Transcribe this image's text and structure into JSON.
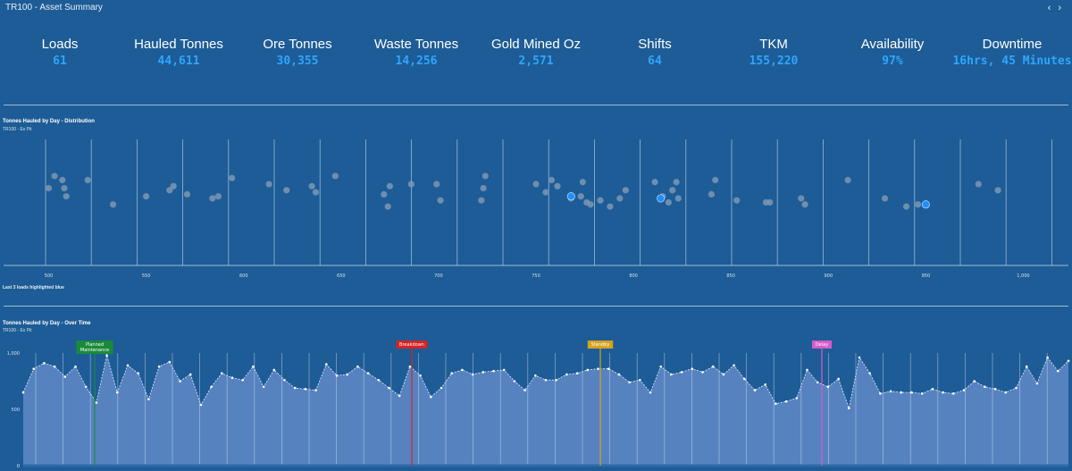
{
  "header": {
    "title": "TR100 - Asset Summary",
    "prev_icon": "‹",
    "next_icon": "›"
  },
  "kpis": [
    {
      "label": "Loads",
      "value": "61"
    },
    {
      "label": "Hauled Tonnes",
      "value": "44,611"
    },
    {
      "label": "Ore Tonnes",
      "value": "30,355"
    },
    {
      "label": "Waste Tonnes",
      "value": "14,256"
    },
    {
      "label": "Gold Mined Oz",
      "value": "2,571"
    },
    {
      "label": "Shifts",
      "value": "64"
    },
    {
      "label": "TKM",
      "value": "155,220"
    },
    {
      "label": "Availability",
      "value": "97%"
    },
    {
      "label": "Downtime",
      "value": "16hrs, 45 Minutes"
    }
  ],
  "distribution": {
    "title": "Tonnes Hauled by Day - Distribution",
    "subtitle": "TR100 - Ex Pit",
    "note": "Last 3 loads highlighted blue"
  },
  "overtime": {
    "title": "Tonnes Hauled by Day - Over Time",
    "subtitle": "TR100 - Ex Pit"
  },
  "colors": {
    "background": "#1d5c96",
    "kpi_value": "#2ea6ff",
    "point": "#7d97b5",
    "highlight": "#1e90ff",
    "area": "#5a84c2"
  },
  "chart_data": [
    {
      "type": "scatter",
      "title": "Tonnes Hauled by Day - Distribution",
      "subtitle": "TR100 - Ex Pit",
      "xlim": [
        475,
        1025
      ],
      "xticks": [
        500,
        550,
        600,
        650,
        700,
        750,
        800,
        850,
        900,
        950,
        1000
      ],
      "xtick_labels": [
        "500",
        "550",
        "600",
        "650",
        "700",
        "750",
        "800",
        "850",
        "900",
        "950",
        "1,000"
      ],
      "points": [
        {
          "x": 500,
          "j": 0.38
        },
        {
          "x": 503,
          "j": 0.44
        },
        {
          "x": 507,
          "j": 0.42
        },
        {
          "x": 508,
          "j": 0.38
        },
        {
          "x": 509,
          "j": 0.34
        },
        {
          "x": 520,
          "j": 0.42
        },
        {
          "x": 533,
          "j": 0.3
        },
        {
          "x": 550,
          "j": 0.34
        },
        {
          "x": 562,
          "j": 0.37
        },
        {
          "x": 564,
          "j": 0.39
        },
        {
          "x": 571,
          "j": 0.35
        },
        {
          "x": 584,
          "j": 0.33
        },
        {
          "x": 587,
          "j": 0.34
        },
        {
          "x": 594,
          "j": 0.43
        },
        {
          "x": 613,
          "j": 0.4
        },
        {
          "x": 622,
          "j": 0.37
        },
        {
          "x": 635,
          "j": 0.39
        },
        {
          "x": 637,
          "j": 0.36
        },
        {
          "x": 647,
          "j": 0.44
        },
        {
          "x": 672,
          "j": 0.35
        },
        {
          "x": 674,
          "j": 0.29
        },
        {
          "x": 675,
          "j": 0.39
        },
        {
          "x": 686,
          "j": 0.4
        },
        {
          "x": 699,
          "j": 0.4
        },
        {
          "x": 701,
          "j": 0.32
        },
        {
          "x": 722,
          "j": 0.32
        },
        {
          "x": 723,
          "j": 0.38
        },
        {
          "x": 724,
          "j": 0.44
        },
        {
          "x": 750,
          "j": 0.4
        },
        {
          "x": 755,
          "j": 0.36
        },
        {
          "x": 758,
          "j": 0.42
        },
        {
          "x": 761,
          "j": 0.39
        },
        {
          "x": 768,
          "j": 0.33
        },
        {
          "x": 773,
          "j": 0.34
        },
        {
          "x": 774,
          "j": 0.41
        },
        {
          "x": 776,
          "j": 0.31
        },
        {
          "x": 778,
          "j": 0.3
        },
        {
          "x": 783,
          "j": 0.32
        },
        {
          "x": 788,
          "j": 0.29
        },
        {
          "x": 793,
          "j": 0.33
        },
        {
          "x": 796,
          "j": 0.37
        },
        {
          "x": 811,
          "j": 0.41
        },
        {
          "x": 815,
          "j": 0.34
        },
        {
          "x": 818,
          "j": 0.31
        },
        {
          "x": 820,
          "j": 0.37
        },
        {
          "x": 822,
          "j": 0.41
        },
        {
          "x": 823,
          "j": 0.33
        },
        {
          "x": 840,
          "j": 0.35
        },
        {
          "x": 842,
          "j": 0.42
        },
        {
          "x": 853,
          "j": 0.32
        },
        {
          "x": 868,
          "j": 0.31
        },
        {
          "x": 870,
          "j": 0.31
        },
        {
          "x": 886,
          "j": 0.33
        },
        {
          "x": 888,
          "j": 0.3
        },
        {
          "x": 910,
          "j": 0.42
        },
        {
          "x": 929,
          "j": 0.33
        },
        {
          "x": 940,
          "j": 0.29
        },
        {
          "x": 946,
          "j": 0.3
        },
        {
          "x": 977,
          "j": 0.4
        },
        {
          "x": 987,
          "j": 0.37
        }
      ],
      "highlighted": [
        {
          "x": 768,
          "j": 0.34
        },
        {
          "x": 814,
          "j": 0.33
        },
        {
          "x": 950,
          "j": 0.3
        }
      ]
    },
    {
      "type": "area",
      "title": "Tonnes Hauled by Day - Over Time",
      "subtitle": "TR100 - Ex Pit",
      "ylim": [
        0,
        1000
      ],
      "yticks": [
        0,
        500,
        1000
      ],
      "ytick_labels": [
        "0",
        "500",
        "1,000"
      ],
      "x": [
        0,
        1,
        2,
        3,
        4,
        5,
        6,
        7,
        8,
        9,
        10,
        11,
        12,
        13,
        14,
        15,
        16,
        17,
        18,
        19,
        20,
        21,
        22,
        23,
        24,
        25,
        26,
        27,
        28,
        29,
        30,
        31,
        32,
        33,
        34,
        35,
        36,
        37,
        38,
        39,
        40,
        41,
        42,
        43,
        44,
        45,
        46,
        47,
        48,
        49,
        50,
        51,
        52,
        53,
        54,
        55,
        56,
        57,
        58,
        59,
        60,
        61,
        62,
        63,
        64,
        65,
        66,
        67,
        68,
        69,
        70,
        71,
        72,
        73,
        74,
        75,
        76,
        77,
        78,
        79,
        80,
        81,
        82,
        83,
        84,
        85,
        86,
        87,
        88,
        89,
        90,
        91,
        92,
        93,
        94,
        95,
        96,
        97,
        98,
        99,
        100
      ],
      "values": [
        650,
        860,
        910,
        880,
        790,
        880,
        700,
        560,
        980,
        650,
        890,
        820,
        590,
        880,
        920,
        750,
        810,
        540,
        700,
        820,
        780,
        760,
        880,
        700,
        850,
        760,
        690,
        680,
        670,
        900,
        800,
        810,
        880,
        820,
        760,
        690,
        620,
        880,
        800,
        610,
        690,
        820,
        850,
        810,
        830,
        840,
        850,
        750,
        670,
        800,
        760,
        760,
        810,
        820,
        850,
        860,
        860,
        810,
        740,
        760,
        650,
        880,
        810,
        830,
        860,
        830,
        880,
        810,
        890,
        770,
        670,
        720,
        550,
        570,
        600,
        850,
        740,
        700,
        770,
        510,
        960,
        820,
        640,
        660,
        650,
        650,
        640,
        680,
        650,
        640,
        670,
        750,
        700,
        680,
        650,
        690,
        880,
        730,
        960,
        840,
        930
      ],
      "events": [
        {
          "label": "Planned Maintenance",
          "color": "#1a8a3a"
        },
        {
          "label": "Breakdown",
          "color": "#d42424"
        },
        {
          "label": "Standby",
          "color": "#d6a21e"
        },
        {
          "label": "Delay",
          "color": "#d65bc8"
        }
      ]
    }
  ]
}
